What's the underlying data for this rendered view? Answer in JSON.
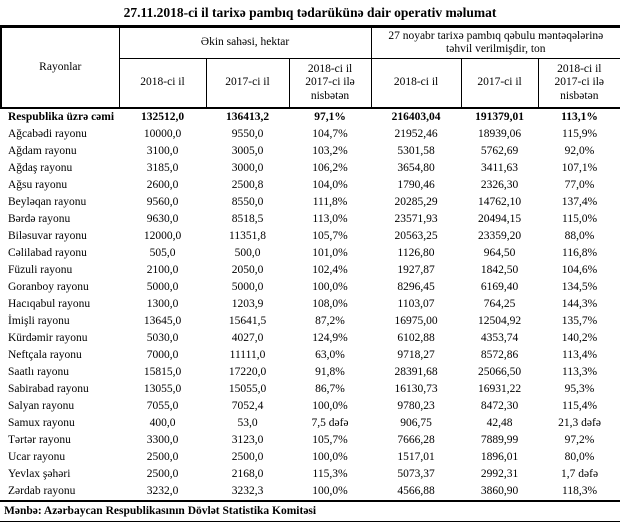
{
  "title": "27.11.2018-ci il tarixə pambıq tədarükünə dair operativ məlumat",
  "table": {
    "header": {
      "rayonlar": "Rayonlar",
      "group1": "Əkin sahəsi, hektar",
      "group2": "27 noyabr tarixə pambıq qəbulu məntəqələrinə təhvil verilmişdir, ton",
      "sub": [
        "2018-ci il",
        "2017-ci il",
        "2018-ci il\n2017-ci ilə\nnisbətən",
        "2018-ci il",
        "2017-ci il",
        "2018-ci il\n2017-ci ilə\nnisbətən"
      ]
    },
    "rows": [
      {
        "name": "Respublika üzrə cəmi",
        "bold": true,
        "values": [
          "132512,0",
          "136413,2",
          "97,1%",
          "216403,04",
          "191379,01",
          "113,1%"
        ]
      },
      {
        "name": "Ağcabədi rayonu",
        "bold": false,
        "values": [
          "10000,0",
          "9550,0",
          "104,7%",
          "21952,46",
          "18939,06",
          "115,9%"
        ]
      },
      {
        "name": "Ağdam rayonu",
        "bold": false,
        "values": [
          "3100,0",
          "3005,0",
          "103,2%",
          "5301,58",
          "5762,69",
          "92,0%"
        ]
      },
      {
        "name": "Ağdaş rayonu",
        "bold": false,
        "values": [
          "3185,0",
          "3000,0",
          "106,2%",
          "3654,80",
          "3411,63",
          "107,1%"
        ]
      },
      {
        "name": "Ağsu rayonu",
        "bold": false,
        "values": [
          "2600,0",
          "2500,8",
          "104,0%",
          "1790,46",
          "2326,30",
          "77,0%"
        ]
      },
      {
        "name": "Beyləqan rayonu",
        "bold": false,
        "values": [
          "9560,0",
          "8550,0",
          "111,8%",
          "20285,29",
          "14762,10",
          "137,4%"
        ]
      },
      {
        "name": "Bərdə rayonu",
        "bold": false,
        "values": [
          "9630,0",
          "8518,5",
          "113,0%",
          "23571,93",
          "20494,15",
          "115,0%"
        ]
      },
      {
        "name": "Biləsuvar rayonu",
        "bold": false,
        "values": [
          "12000,0",
          "11351,8",
          "105,7%",
          "20563,25",
          "23359,20",
          "88,0%"
        ]
      },
      {
        "name": "Cəlilabad rayonu",
        "bold": false,
        "values": [
          "505,0",
          "500,0",
          "101,0%",
          "1126,80",
          "964,50",
          "116,8%"
        ]
      },
      {
        "name": "Füzuli rayonu",
        "bold": false,
        "values": [
          "2100,0",
          "2050,0",
          "102,4%",
          "1927,87",
          "1842,50",
          "104,6%"
        ]
      },
      {
        "name": "Goranboy rayonu",
        "bold": false,
        "values": [
          "5000,0",
          "5000,0",
          "100,0%",
          "8296,45",
          "6169,40",
          "134,5%"
        ]
      },
      {
        "name": "Hacıqabul rayonu",
        "bold": false,
        "values": [
          "1300,0",
          "1203,9",
          "108,0%",
          "1103,07",
          "764,25",
          "144,3%"
        ]
      },
      {
        "name": "İmişli rayonu",
        "bold": false,
        "values": [
          "13645,0",
          "15641,5",
          "87,2%",
          "16975,00",
          "12504,92",
          "135,7%"
        ]
      },
      {
        "name": "Kürdəmir rayonu",
        "bold": false,
        "values": [
          "5030,0",
          "4027,0",
          "124,9%",
          "6102,88",
          "4353,74",
          "140,2%"
        ]
      },
      {
        "name": "Neftçala rayonu",
        "bold": false,
        "values": [
          "7000,0",
          "11111,0",
          "63,0%",
          "9718,27",
          "8572,86",
          "113,4%"
        ]
      },
      {
        "name": "Saatlı rayonu",
        "bold": false,
        "values": [
          "15815,0",
          "17220,0",
          "91,8%",
          "28391,68",
          "25066,50",
          "113,3%"
        ]
      },
      {
        "name": "Sabirabad rayonu",
        "bold": false,
        "values": [
          "13055,0",
          "15055,0",
          "86,7%",
          "16130,73",
          "16931,22",
          "95,3%"
        ]
      },
      {
        "name": "Salyan rayonu",
        "bold": false,
        "values": [
          "7055,0",
          "7052,4",
          "100,0%",
          "9780,23",
          "8472,30",
          "115,4%"
        ]
      },
      {
        "name": "Samux rayonu",
        "bold": false,
        "values": [
          "400,0",
          "53,0",
          "7,5 dəfə",
          "906,75",
          "42,48",
          "21,3 dəfə"
        ]
      },
      {
        "name": "Tərtər rayonu",
        "bold": false,
        "values": [
          "3300,0",
          "3123,0",
          "105,7%",
          "7666,28",
          "7889,99",
          "97,2%"
        ]
      },
      {
        "name": "Ucar rayonu",
        "bold": false,
        "values": [
          "2500,0",
          "2500,0",
          "100,0%",
          "1517,01",
          "1896,01",
          "80,0%"
        ]
      },
      {
        "name": "Yevlax şəhəri",
        "bold": false,
        "values": [
          "2500,0",
          "2168,0",
          "115,3%",
          "5073,37",
          "2992,31",
          "1,7 dəfə"
        ]
      },
      {
        "name": "Zərdab rayonu",
        "bold": false,
        "values": [
          "3232,0",
          "3232,3",
          "100,0%",
          "4566,88",
          "3860,90",
          "118,3%"
        ]
      }
    ]
  },
  "source": "Mənbə: Azərbaycan Respublikasının Dövlət Statistika Komitəsi"
}
